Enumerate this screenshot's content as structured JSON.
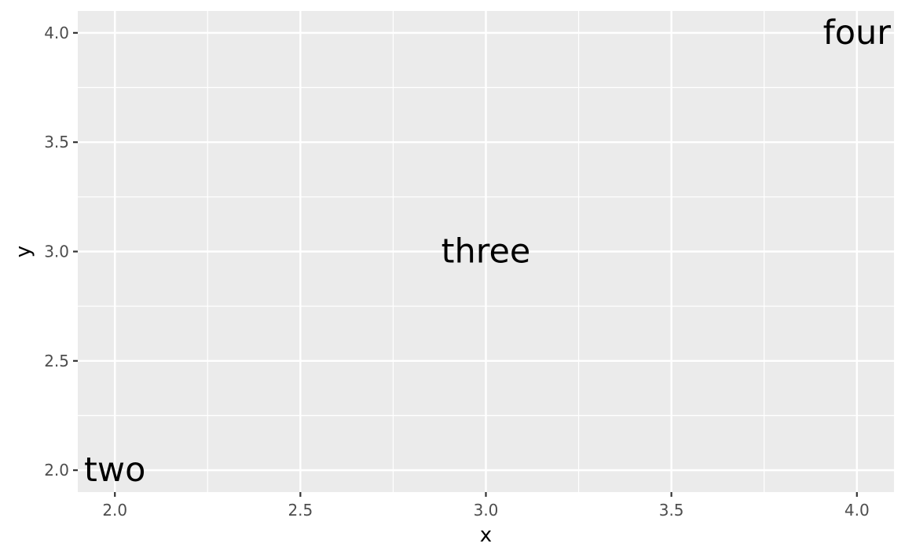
{
  "chart_data": {
    "type": "scatter",
    "geom": "text",
    "x": [
      2,
      3,
      4
    ],
    "y": [
      2,
      3,
      4
    ],
    "labels": [
      "two",
      "three",
      "four"
    ],
    "xlabel": "x",
    "ylabel": "y",
    "xlim": [
      1.9,
      4.1
    ],
    "ylim": [
      1.9,
      4.1
    ],
    "x_ticks": [
      2.0,
      2.5,
      3.0,
      3.5,
      4.0
    ],
    "y_ticks": [
      2.0,
      2.5,
      3.0,
      3.5,
      4.0
    ],
    "x_tick_labels": [
      "2.0",
      "2.5",
      "3.0",
      "3.5",
      "4.0"
    ],
    "y_tick_labels": [
      "2.0",
      "2.5",
      "3.0",
      "3.5",
      "4.0"
    ],
    "grid": true,
    "legend": "none",
    "colors": {
      "panel": "#ebebeb",
      "grid": "#ffffff",
      "tick_text": "#4d4d4d",
      "text": "#000000"
    }
  }
}
